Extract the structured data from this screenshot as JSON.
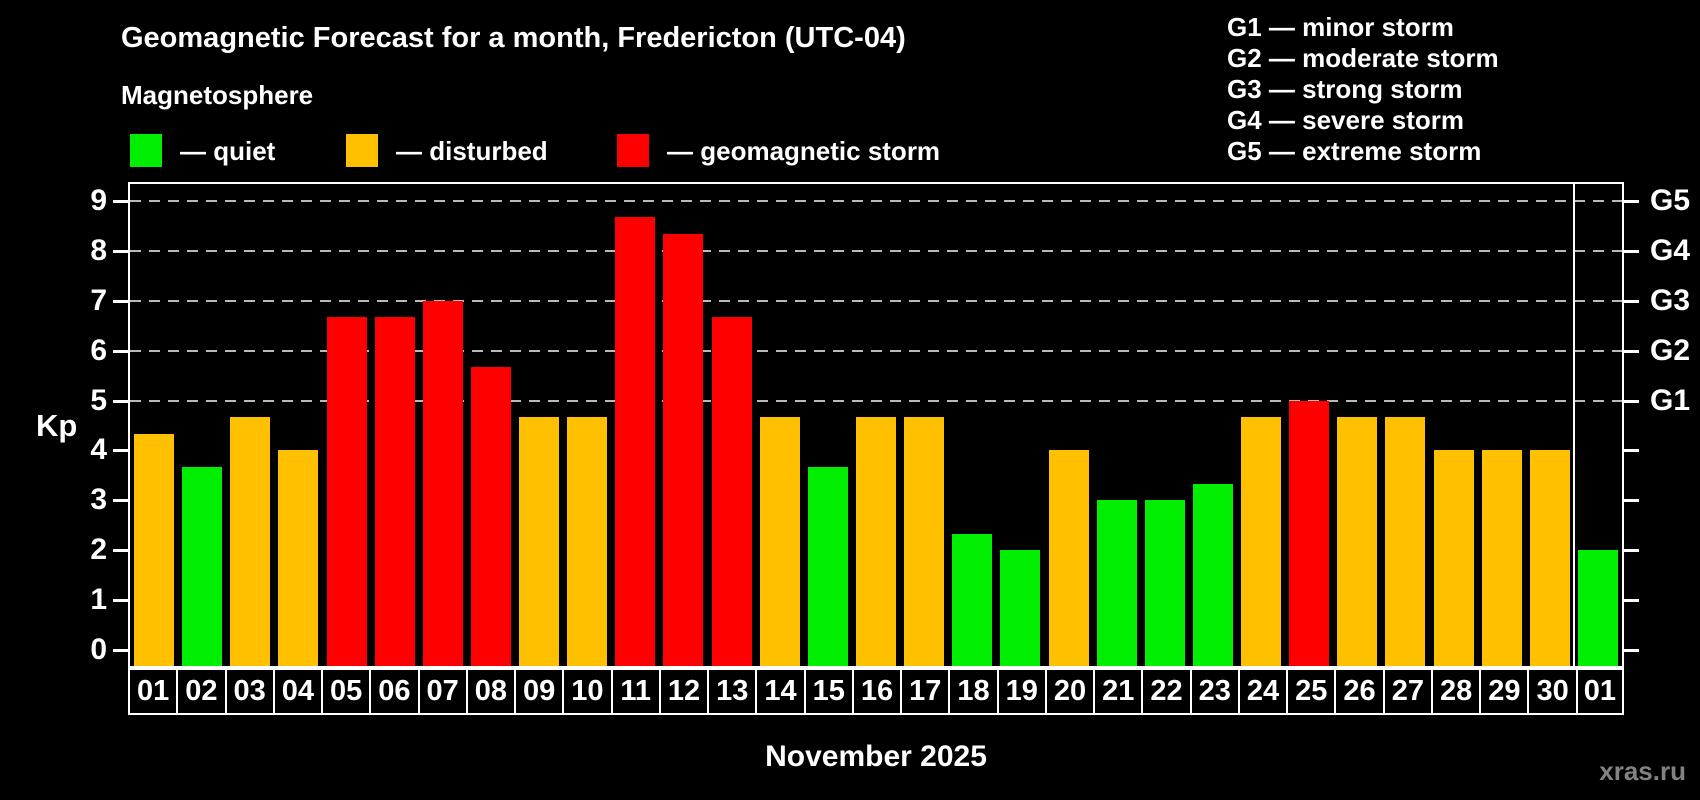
{
  "title": "Geomagnetic Forecast for a month, Fredericton (UTC-04)",
  "subtitle": "Magnetosphere",
  "colors": {
    "background": "#000000",
    "quiet": "#00ee00",
    "disturbed": "#ffc000",
    "storm": "#ff0000",
    "axis": "#ffffff",
    "grid": "#b9b9b9",
    "watermark": "#828282"
  },
  "legend": {
    "items": [
      {
        "status": "quiet",
        "label": "— quiet"
      },
      {
        "status": "disturbed",
        "label": "— disturbed"
      },
      {
        "status": "storm",
        "label": "— geomagnetic storm"
      }
    ]
  },
  "g_levels": [
    {
      "code": "G1",
      "kp": 5,
      "legend": "G1 — minor storm"
    },
    {
      "code": "G2",
      "kp": 6,
      "legend": "G2 — moderate storm"
    },
    {
      "code": "G3",
      "kp": 7,
      "legend": "G3 — strong storm"
    },
    {
      "code": "G4",
      "kp": 8,
      "legend": "G4 — severe storm"
    },
    {
      "code": "G5",
      "kp": 9,
      "legend": "G5 — extreme storm"
    }
  ],
  "y_axis": {
    "label": "Kp",
    "ticks": [
      "0",
      "1",
      "2",
      "3",
      "4",
      "5",
      "6",
      "7",
      "8",
      "9"
    ]
  },
  "watermark": "xras.ru",
  "chart_data": {
    "type": "bar",
    "title": "Geomagnetic Forecast for a month, Fredericton (UTC-04)",
    "subtitle": "Magnetosphere",
    "xlabel": "November 2025",
    "ylabel": "Kp",
    "ylim": [
      0,
      9
    ],
    "grid": "dashed horizontal at Kp 5-9 only",
    "gridlines_kp": [
      5,
      6,
      7,
      8,
      9
    ],
    "legend_position": "top-left",
    "month_boundary_after_index": 29,
    "categories": [
      "01",
      "02",
      "03",
      "04",
      "05",
      "06",
      "07",
      "08",
      "09",
      "10",
      "11",
      "12",
      "13",
      "14",
      "15",
      "16",
      "17",
      "18",
      "19",
      "20",
      "21",
      "22",
      "23",
      "24",
      "25",
      "26",
      "27",
      "28",
      "29",
      "30",
      "01"
    ],
    "values": [
      4.33,
      3.67,
      4.67,
      4.0,
      6.67,
      6.67,
      7.0,
      5.67,
      4.67,
      4.67,
      8.67,
      8.33,
      6.67,
      4.67,
      3.67,
      4.67,
      4.67,
      2.33,
      2.0,
      4.0,
      3.0,
      3.0,
      3.33,
      4.67,
      5.0,
      4.67,
      4.67,
      4.0,
      4.0,
      4.0,
      2.0
    ],
    "statuses": [
      "disturbed",
      "quiet",
      "disturbed",
      "disturbed",
      "storm",
      "storm",
      "storm",
      "storm",
      "disturbed",
      "disturbed",
      "storm",
      "storm",
      "storm",
      "disturbed",
      "quiet",
      "disturbed",
      "disturbed",
      "quiet",
      "quiet",
      "disturbed",
      "quiet",
      "quiet",
      "quiet",
      "disturbed",
      "storm",
      "disturbed",
      "disturbed",
      "disturbed",
      "disturbed",
      "disturbed",
      "quiet"
    ]
  }
}
